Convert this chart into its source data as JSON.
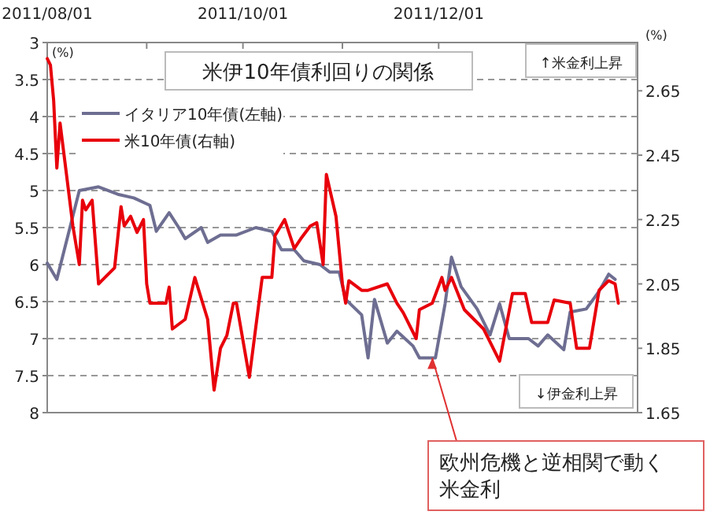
{
  "chart_data": {
    "type": "line",
    "title": "米伊10年債利回りの関係",
    "ylabel": "(%)",
    "y2label": "(%)",
    "xlim": [
      "2011-08-01",
      "2012-02-01"
    ],
    "xticks": [
      {
        "value": "2011-08-01",
        "label": "2011/08/01"
      },
      {
        "value": "2011-09-01",
        "label": null
      },
      {
        "value": "2011-10-01",
        "label": "2011/10/01"
      },
      {
        "value": "2011-11-01",
        "label": null
      },
      {
        "value": "2011-12-01",
        "label": "2011/12/01"
      },
      {
        "value": "2012-01-01",
        "label": null
      },
      {
        "value": "2012-02-01",
        "label": null
      }
    ],
    "ylim": [
      8,
      3
    ],
    "yticks": [
      3,
      3.5,
      4,
      4.5,
      5,
      5.5,
      6,
      6.5,
      7,
      7.5,
      8
    ],
    "y2lim": [
      1.65,
      2.8
    ],
    "y2ticks": [
      1.65,
      1.85,
      2.05,
      2.25,
      2.45,
      2.65
    ],
    "grid": "y",
    "legend": "top left",
    "annotations": [
      "↑米金利上昇",
      "↓伊金利上昇",
      {
        "text": "欧州危機と逆相関で動く米金利",
        "x": "2011-11-29",
        "y": 7.26
      }
    ],
    "series": [
      {
        "name": "イタリア10年債(左軸)",
        "color": "#6e6e92",
        "x": [
          "2011-08-01",
          "2011-08-04",
          "2011-08-11",
          "2011-08-17",
          "2011-08-23",
          "2011-08-28",
          "2011-09-02",
          "2011-09-04",
          "2011-09-08",
          "2011-09-11",
          "2011-09-13",
          "2011-09-18",
          "2011-09-20",
          "2011-09-24",
          "2011-09-29",
          "2011-10-05",
          "2011-10-10",
          "2011-10-13",
          "2011-10-17",
          "2011-10-20",
          "2011-10-25",
          "2011-10-28",
          "2011-10-31",
          "2011-11-02",
          "2011-11-07",
          "2011-11-09",
          "2011-11-11",
          "2011-11-15",
          "2011-11-18",
          "2011-11-23",
          "2011-11-25",
          "2011-11-30",
          "2011-12-03",
          "2011-12-05",
          "2011-12-08",
          "2011-12-13",
          "2011-12-17",
          "2011-12-20",
          "2011-12-23",
          "2011-12-29",
          "2012-01-01",
          "2012-01-04",
          "2012-01-09",
          "2012-01-11",
          "2012-01-16",
          "2012-01-20",
          "2012-01-23",
          "2012-01-25"
        ],
        "values": [
          5.98,
          6.2,
          5.0,
          4.95,
          5.05,
          5.1,
          5.2,
          5.55,
          5.3,
          5.5,
          5.65,
          5.5,
          5.7,
          5.6,
          5.6,
          5.5,
          5.55,
          5.8,
          5.8,
          5.95,
          6.0,
          6.1,
          6.1,
          6.47,
          6.68,
          7.26,
          6.47,
          7.06,
          6.9,
          7.1,
          7.26,
          7.26,
          6.53,
          5.9,
          6.3,
          6.6,
          6.95,
          6.53,
          7.0,
          7.0,
          7.1,
          6.95,
          7.15,
          6.64,
          6.6,
          6.36,
          6.13,
          6.2
        ]
      },
      {
        "name": "米10年債(右軸)",
        "color": "#e8000b",
        "axis": "y2",
        "x": [
          "2011-08-01",
          "2011-08-02",
          "2011-08-03",
          "2011-08-04",
          "2011-08-05",
          "2011-08-07",
          "2011-08-09",
          "2011-08-11",
          "2011-08-12",
          "2011-08-13",
          "2011-08-15",
          "2011-08-17",
          "2011-08-18",
          "2011-08-22",
          "2011-08-24",
          "2011-08-25",
          "2011-08-27",
          "2011-08-29",
          "2011-08-31",
          "2011-09-01",
          "2011-09-02",
          "2011-09-07",
          "2011-09-08",
          "2011-09-09",
          "2011-09-13",
          "2011-09-16",
          "2011-09-20",
          "2011-09-22",
          "2011-09-24",
          "2011-09-26",
          "2011-09-28",
          "2011-09-29",
          "2011-10-03",
          "2011-10-07",
          "2011-10-10",
          "2011-10-11",
          "2011-10-14",
          "2011-10-17",
          "2011-10-19",
          "2011-10-22",
          "2011-10-24",
          "2011-10-26",
          "2011-10-27",
          "2011-10-30",
          "2011-11-01",
          "2011-11-02",
          "2011-11-03",
          "2011-11-07",
          "2011-11-09",
          "2011-11-15",
          "2011-11-18",
          "2011-11-20",
          "2011-11-24",
          "2011-11-25",
          "2011-11-29",
          "2011-12-02",
          "2011-12-03",
          "2011-12-05",
          "2011-12-09",
          "2011-12-15",
          "2011-12-20",
          "2011-12-24",
          "2011-12-28",
          "2011-12-30",
          "2012-01-04",
          "2012-01-06",
          "2012-01-11",
          "2012-01-13",
          "2012-01-17",
          "2012-01-20",
          "2012-01-23",
          "2012-01-25",
          "2012-01-26"
        ],
        "values": [
          2.75,
          2.73,
          2.62,
          2.41,
          2.55,
          2.39,
          2.23,
          2.11,
          2.31,
          2.28,
          2.31,
          2.05,
          2.06,
          2.1,
          2.29,
          2.23,
          2.26,
          2.21,
          2.25,
          2.05,
          1.99,
          1.99,
          2.04,
          1.91,
          1.94,
          2.07,
          1.94,
          1.72,
          1.85,
          1.89,
          1.99,
          1.99,
          1.76,
          2.07,
          2.07,
          2.2,
          2.25,
          2.16,
          2.19,
          2.23,
          2.24,
          2.11,
          2.39,
          2.26,
          2.05,
          1.99,
          2.06,
          2.03,
          2.03,
          2.05,
          1.99,
          1.96,
          1.88,
          1.97,
          1.99,
          2.07,
          2.03,
          2.07,
          1.97,
          1.91,
          1.81,
          2.02,
          2.02,
          1.93,
          1.93,
          2.0,
          1.99,
          1.85,
          1.85,
          2.03,
          2.06,
          2.05,
          1.99
        ]
      }
    ]
  }
}
